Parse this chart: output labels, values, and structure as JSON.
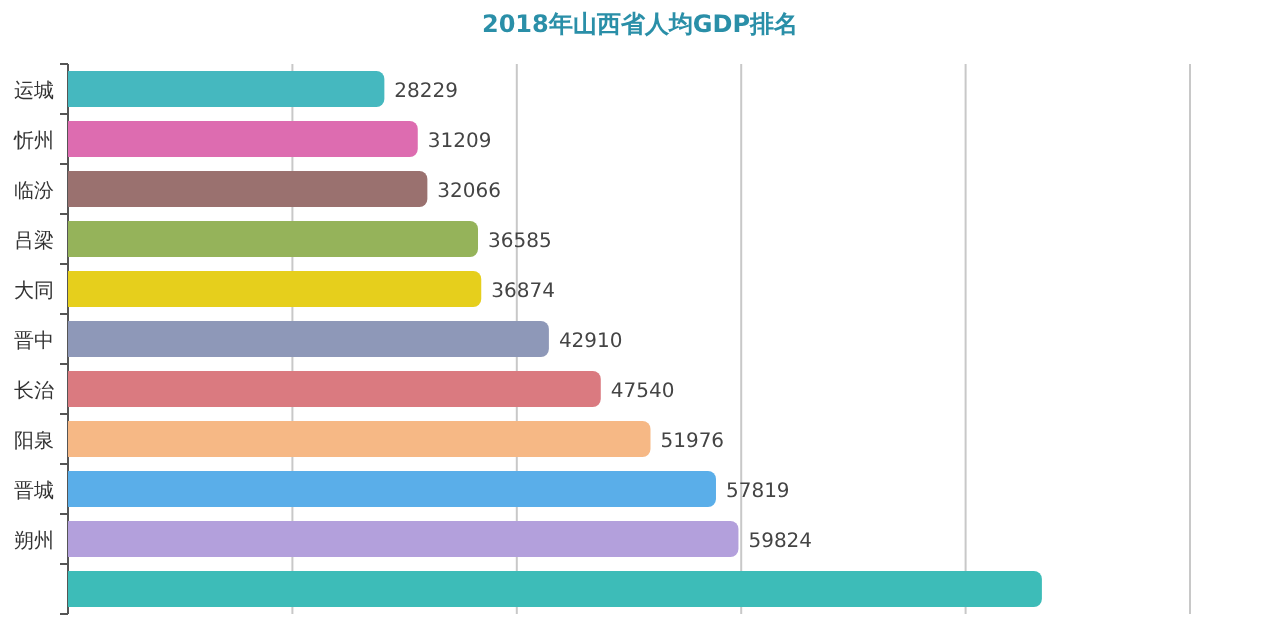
{
  "chart_data": {
    "type": "bar",
    "orientation": "horizontal",
    "title": "2018年山西省人均GDP排名",
    "categories": [
      "运城",
      "忻州",
      "临汾",
      "吕梁",
      "大同",
      "晋中",
      "长治",
      "阳泉",
      "晋城",
      "朔州",
      null
    ],
    "values": [
      28229,
      31209,
      32066,
      36585,
      36874,
      42910,
      47540,
      51976,
      57819,
      59824,
      86900
    ],
    "colors": [
      "#45b8bf",
      "#dd6cb0",
      "#9a716f",
      "#95b35a",
      "#e6cf1c",
      "#8e98b8",
      "#da7a80",
      "#f6b885",
      "#5aaee9",
      "#b3a0dc",
      "#3dbcb8"
    ],
    "value_labels": [
      "28229",
      "31209",
      "32066",
      "36585",
      "36874",
      "42910",
      "47540",
      "51976",
      "57819",
      "59824",
      null
    ],
    "grid": "x"
  }
}
